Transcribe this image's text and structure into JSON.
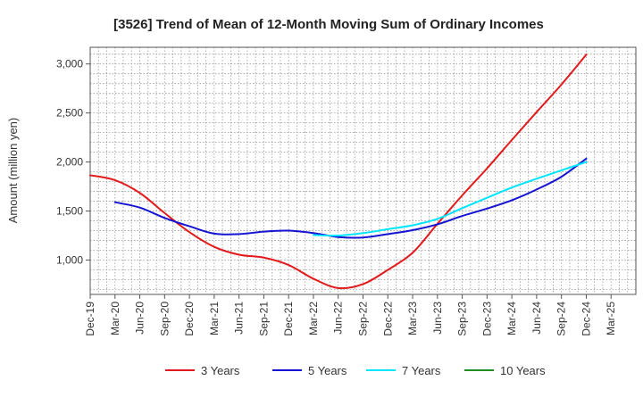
{
  "chart_data": {
    "type": "line",
    "title": "[3526]  Trend of Mean of 12-Month Moving Sum of Ordinary Incomes",
    "xlabel": "",
    "ylabel": "Amount (million yen)",
    "ylim": [
      650,
      3170
    ],
    "yticks": [
      1000,
      1500,
      2000,
      2500,
      3000
    ],
    "ytick_labels": [
      "1,000",
      "1,500",
      "2,000",
      "2,500",
      "3,000"
    ],
    "categories": [
      "Dec-19",
      "Mar-20",
      "Jun-20",
      "Sep-20",
      "Dec-20",
      "Mar-21",
      "Jun-21",
      "Sep-21",
      "Dec-21",
      "Mar-22",
      "Jun-22",
      "Sep-22",
      "Dec-22",
      "Mar-23",
      "Jun-23",
      "Sep-23",
      "Dec-23",
      "Mar-24",
      "Jun-24",
      "Sep-24",
      "Dec-24",
      "Mar-25"
    ],
    "grid": true,
    "legend_position": "bottom",
    "series": [
      {
        "name": "3 Years",
        "color": "#e31a1c",
        "values": [
          1865,
          1815,
          1685,
          1480,
          1285,
          1135,
          1055,
          1025,
          950,
          810,
          715,
          755,
          900,
          1075,
          1370,
          1660,
          1935,
          2225,
          2510,
          2790,
          3095,
          null
        ]
      },
      {
        "name": "5 Years",
        "color": "#1414d2",
        "values": [
          null,
          1590,
          1535,
          1430,
          1345,
          1270,
          1265,
          1290,
          1300,
          1275,
          1235,
          1230,
          1265,
          1305,
          1365,
          1450,
          1525,
          1610,
          1720,
          1850,
          2035,
          null
        ]
      },
      {
        "name": "7 Years",
        "color": "#00e5ff",
        "values": [
          null,
          null,
          null,
          null,
          null,
          null,
          null,
          null,
          null,
          1255,
          1250,
          1275,
          1315,
          1355,
          1420,
          1530,
          1635,
          1740,
          1830,
          1915,
          2000,
          null
        ]
      },
      {
        "name": "10 Years",
        "color": "#228b22",
        "values": [
          null,
          null,
          null,
          null,
          null,
          null,
          null,
          null,
          null,
          null,
          null,
          null,
          null,
          null,
          null,
          null,
          null,
          null,
          null,
          null,
          null,
          null
        ]
      }
    ]
  }
}
